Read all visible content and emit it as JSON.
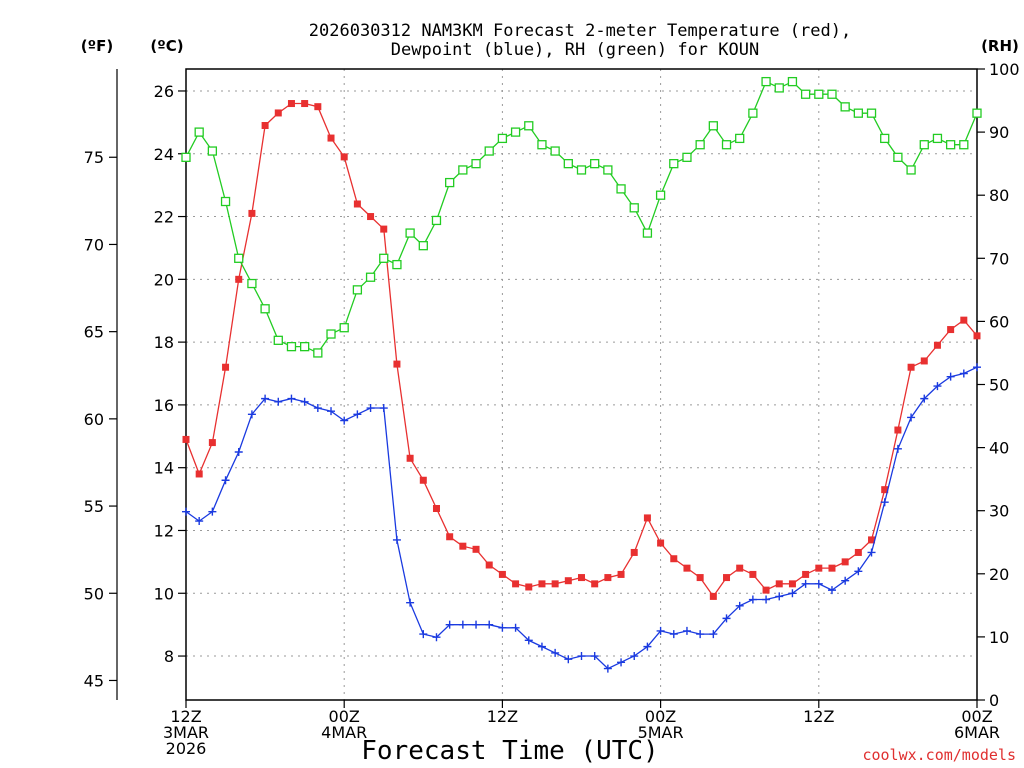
{
  "chart_data": {
    "type": "line",
    "title_line1": "2026030312 NAM3KM Forecast 2-meter Temperature (red),",
    "title_line2": "Dewpoint (blue), RH (green) for KOUN",
    "xlabel": "Forecast Time (UTC)",
    "credit": "coolwx.com/models",
    "unit_labels": {
      "fahrenheit": "(ºF)",
      "celsius": "(ºC)",
      "rh": "(RH)"
    },
    "x_range_hours": [
      0,
      60
    ],
    "x_ticks": [
      {
        "hour": 0,
        "lines": [
          "12Z",
          "3MAR",
          "2026"
        ]
      },
      {
        "hour": 12,
        "lines": [
          "00Z",
          "4MAR"
        ]
      },
      {
        "hour": 24,
        "lines": [
          "12Z"
        ]
      },
      {
        "hour": 36,
        "lines": [
          "00Z",
          "5MAR"
        ]
      },
      {
        "hour": 48,
        "lines": [
          "12Z"
        ]
      },
      {
        "hour": 60,
        "lines": [
          "00Z",
          "6MAR"
        ]
      }
    ],
    "ylim_celsius": [
      6.6,
      26.7
    ],
    "celsius_ticks": [
      "8",
      "10",
      "12",
      "14",
      "16",
      "18",
      "20",
      "22",
      "24",
      "26"
    ],
    "fahrenheit_ticks": [
      "45",
      "50",
      "55",
      "60",
      "65",
      "70",
      "75"
    ],
    "rh_ticks": [
      "0",
      "10",
      "20",
      "30",
      "40",
      "50",
      "60",
      "70",
      "80",
      "90",
      "100"
    ],
    "ylim_rh": [
      0,
      100
    ],
    "series": [
      {
        "name": "Temperature (°C)",
        "color": "#e83030",
        "marker": "filled-square",
        "axis": "celsius",
        "values": [
          14.9,
          13.8,
          14.8,
          17.2,
          20.0,
          22.1,
          24.9,
          25.3,
          25.6,
          25.6,
          25.5,
          24.5,
          23.9,
          22.4,
          22.0,
          21.6,
          17.3,
          14.3,
          13.6,
          12.7,
          11.8,
          11.5,
          11.4,
          10.9,
          10.6,
          10.3,
          10.2,
          10.3,
          10.3,
          10.4,
          10.5,
          10.3,
          10.5,
          10.6,
          11.3,
          12.4,
          11.6,
          11.1,
          10.8,
          10.5,
          9.9,
          10.5,
          10.8,
          10.6,
          10.1,
          10.3,
          10.3,
          10.6,
          10.8,
          10.8,
          11.0,
          11.3,
          11.7,
          13.3,
          15.2,
          17.2,
          17.4,
          17.9,
          18.4,
          18.7,
          18.2
        ]
      },
      {
        "name": "Dewpoint (°C)",
        "color": "#1a3ae0",
        "marker": "plus",
        "axis": "celsius",
        "values": [
          12.6,
          12.3,
          12.6,
          13.6,
          14.5,
          15.7,
          16.2,
          16.1,
          16.2,
          16.1,
          15.9,
          15.8,
          15.5,
          15.7,
          15.9,
          15.9,
          11.7,
          9.7,
          8.7,
          8.6,
          9.0,
          9.0,
          9.0,
          9.0,
          8.9,
          8.9,
          8.5,
          8.3,
          8.1,
          7.9,
          8.0,
          8.0,
          7.6,
          7.8,
          8.0,
          8.3,
          8.8,
          8.7,
          8.8,
          8.7,
          8.7,
          9.2,
          9.6,
          9.8,
          9.8,
          9.9,
          10.0,
          10.3,
          10.3,
          10.1,
          10.4,
          10.7,
          11.3,
          12.9,
          14.6,
          15.6,
          16.2,
          16.6,
          16.9,
          17.0,
          17.2
        ]
      },
      {
        "name": "RH (%)",
        "color": "#22cc22",
        "marker": "open-square",
        "axis": "rh",
        "values": [
          86,
          90,
          87,
          79,
          70,
          66,
          62,
          57,
          56,
          56,
          55,
          58,
          59,
          65,
          67,
          70,
          69,
          74,
          72,
          76,
          82,
          84,
          85,
          87,
          89,
          90,
          91,
          88,
          87,
          85,
          84,
          85,
          84,
          81,
          78,
          74,
          80,
          85,
          86,
          88,
          91,
          88,
          89,
          93,
          98,
          97,
          98,
          96,
          96,
          96,
          94,
          93,
          93,
          89,
          86,
          84,
          88,
          89,
          88,
          88,
          93
        ]
      }
    ]
  }
}
